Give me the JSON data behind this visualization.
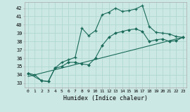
{
  "xlabel": "Humidex (Indice chaleur)",
  "background_color": "#cce8e4",
  "grid_color": "#b0d8d2",
  "line_color": "#1a6b5a",
  "xlim": [
    -0.5,
    23.5
  ],
  "ylim": [
    32.5,
    42.7
  ],
  "xticks": [
    0,
    1,
    2,
    3,
    4,
    5,
    6,
    7,
    8,
    9,
    10,
    11,
    12,
    13,
    14,
    15,
    16,
    17,
    18,
    19,
    20,
    21,
    22,
    23
  ],
  "yticks": [
    33,
    34,
    35,
    36,
    37,
    38,
    39,
    40,
    41,
    42
  ],
  "line1_x": [
    0,
    1,
    2,
    3,
    4,
    5,
    6,
    7,
    8,
    9,
    10,
    11,
    12,
    13,
    14,
    15,
    16,
    17,
    18,
    19,
    20,
    21,
    22,
    23
  ],
  "line1_y": [
    34.2,
    34.0,
    33.3,
    33.2,
    34.8,
    35.5,
    35.8,
    36.1,
    39.6,
    38.7,
    39.3,
    41.2,
    41.5,
    42.0,
    41.6,
    41.7,
    41.9,
    42.3,
    39.8,
    39.1,
    39.0,
    38.9,
    38.6,
    38.5
  ],
  "line2_x": [
    0,
    2,
    3,
    4,
    5,
    6,
    7,
    8,
    9,
    10,
    11,
    12,
    13,
    14,
    15,
    16,
    17,
    18,
    19,
    20,
    21,
    22,
    23
  ],
  "line2_y": [
    34.2,
    33.3,
    33.2,
    34.8,
    35.0,
    35.5,
    35.5,
    35.3,
    35.2,
    36.0,
    37.5,
    38.5,
    39.0,
    39.2,
    39.4,
    39.5,
    39.2,
    38.0,
    38.2,
    38.3,
    38.0,
    38.1,
    38.5
  ],
  "line3_x": [
    0,
    23
  ],
  "line3_y": [
    33.8,
    38.5
  ]
}
